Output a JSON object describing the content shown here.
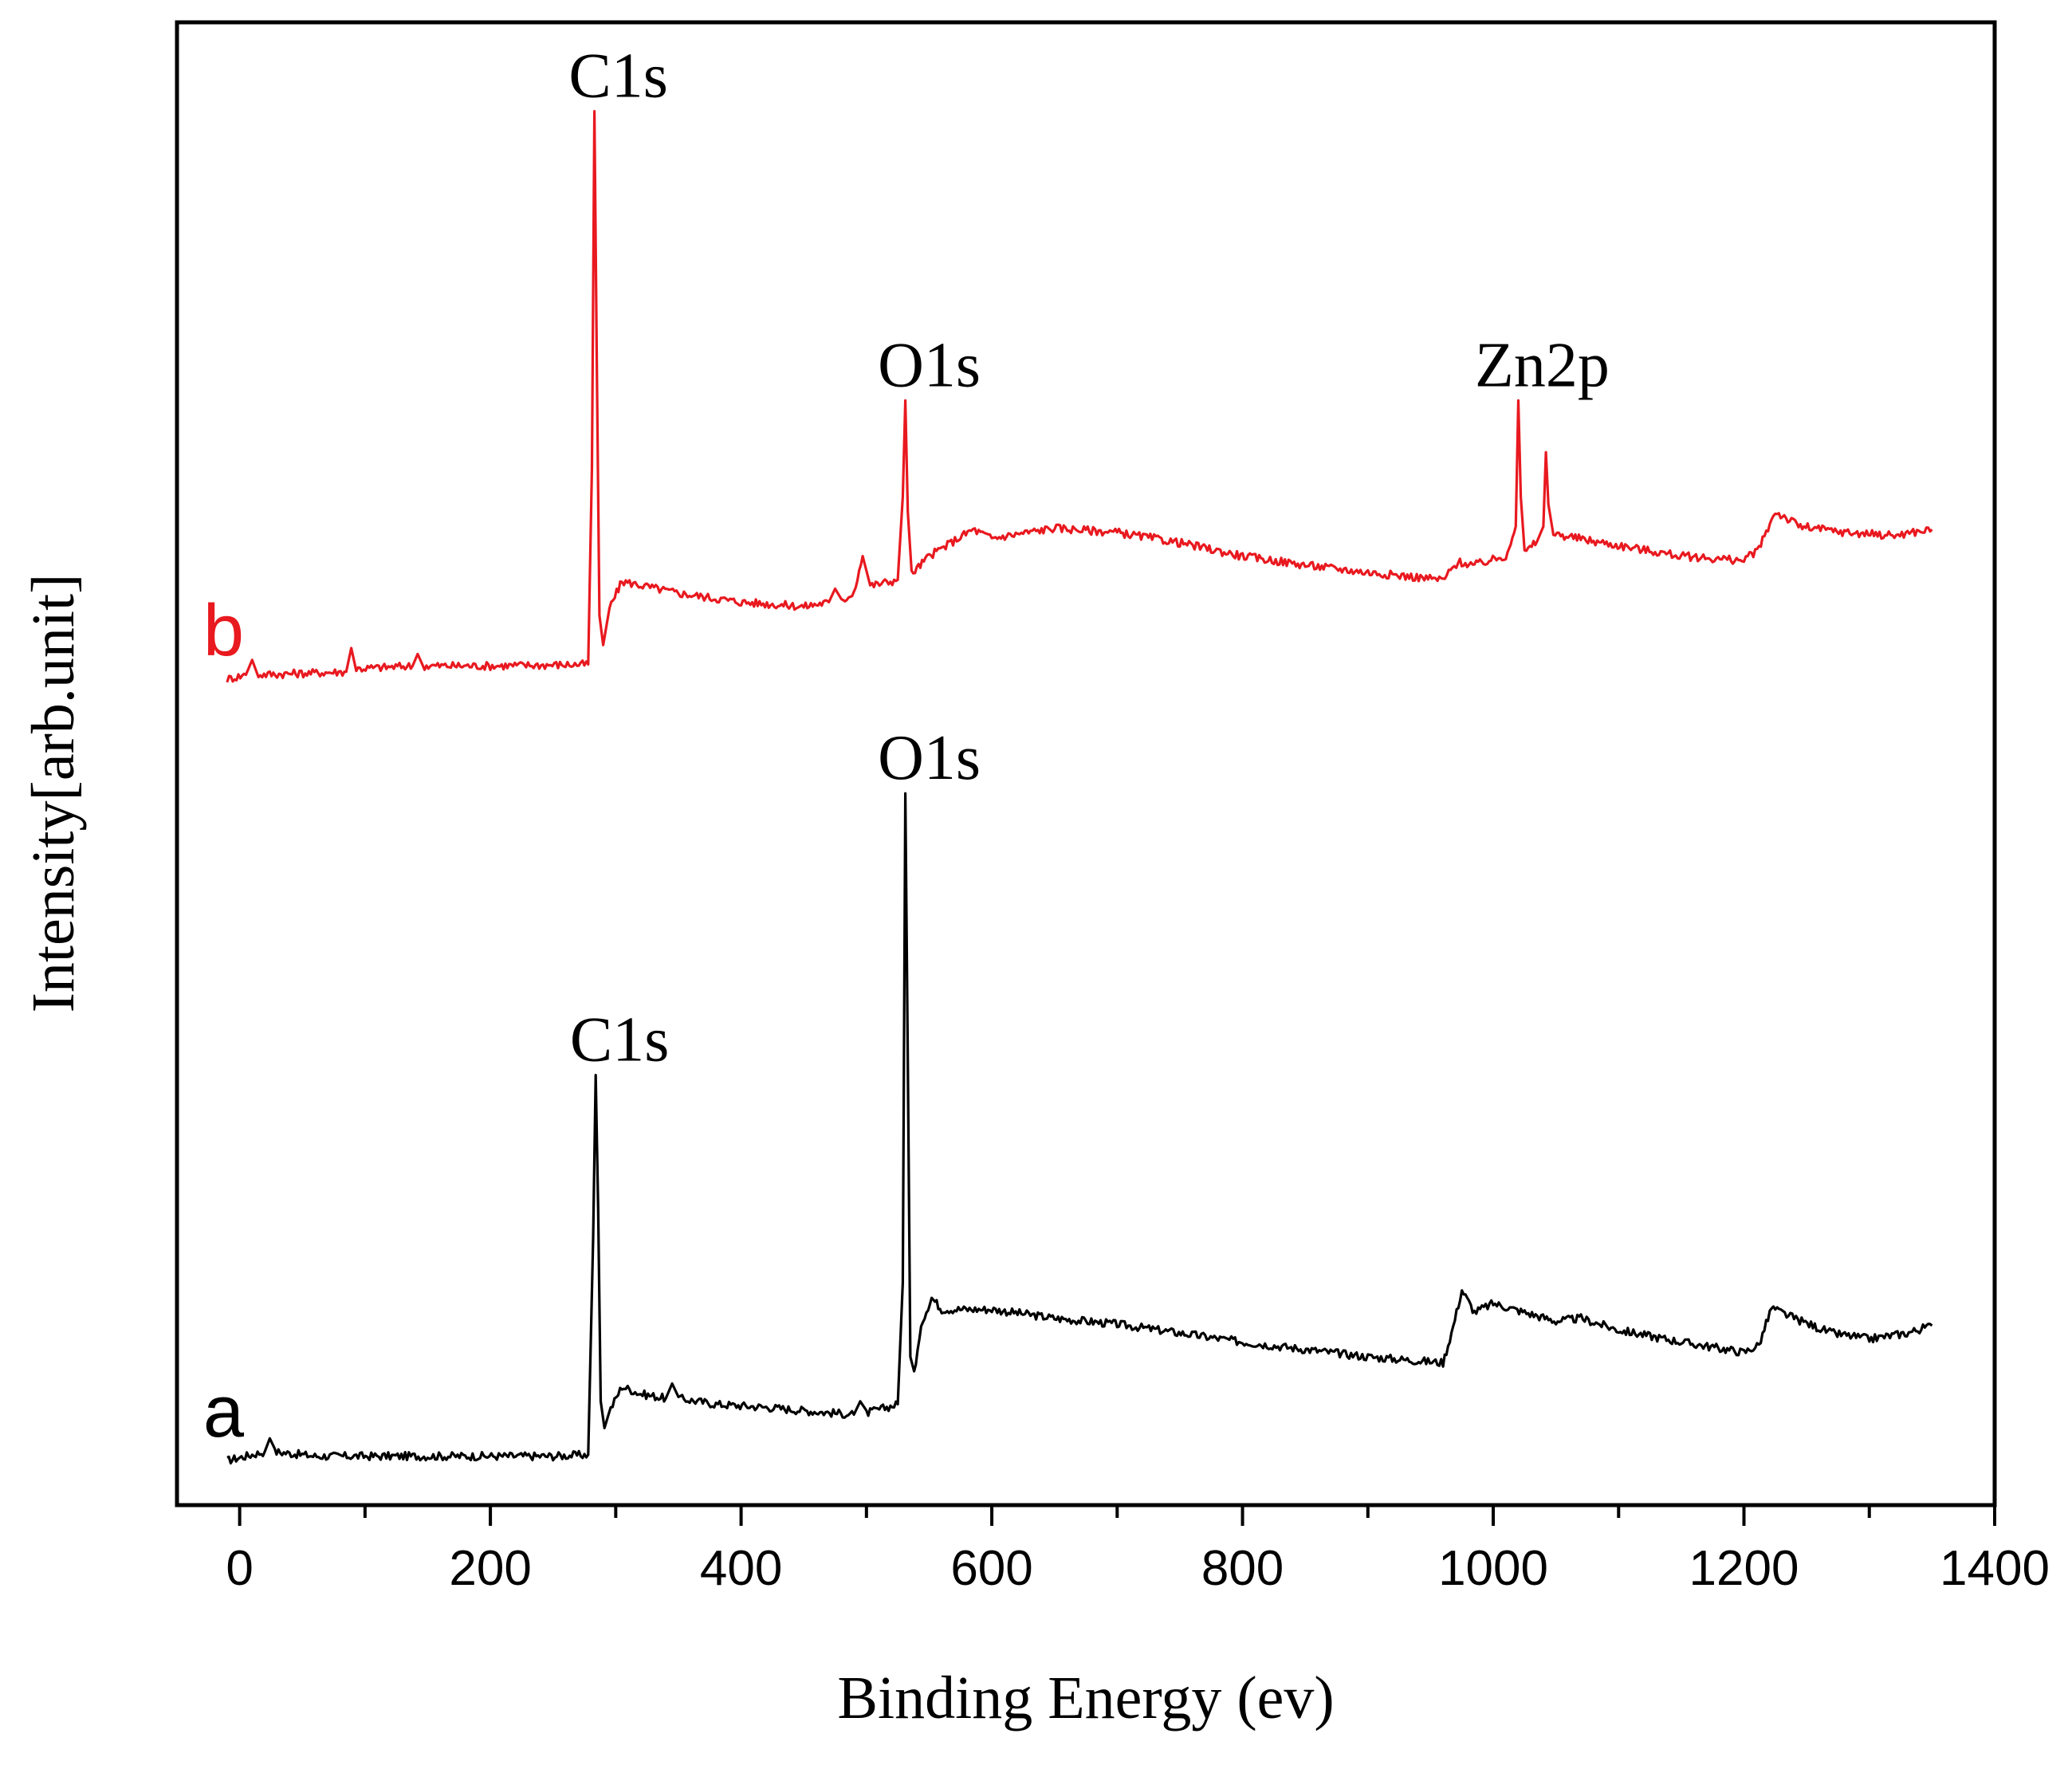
{
  "chart_data": {
    "type": "line",
    "title": "",
    "xlabel": "Binding Energy (ev)",
    "ylabel": "Intensity[arb.unit]",
    "xlim": [
      -50,
      1400
    ],
    "ylim": [
      0,
      100
    ],
    "x_ticks": [
      0,
      200,
      400,
      600,
      800,
      1000,
      1200,
      1400
    ],
    "x_tick_labels": [
      "0",
      "200",
      "400",
      "600",
      "800",
      "1000",
      "1200",
      "1400"
    ],
    "grid": false,
    "series": [
      {
        "name": "a",
        "label": "a",
        "color": "#000000",
        "points": [
          [
            -10,
            3.0
          ],
          [
            0,
            3.2
          ],
          [
            20,
            3.6
          ],
          [
            24,
            4.5
          ],
          [
            28,
            3.6
          ],
          [
            60,
            3.3
          ],
          [
            150,
            3.3
          ],
          [
            250,
            3.3
          ],
          [
            278,
            3.4
          ],
          [
            282,
            18.0
          ],
          [
            284,
            29.0
          ],
          [
            286,
            20.0
          ],
          [
            288,
            7.0
          ],
          [
            291,
            5.2
          ],
          [
            296,
            6.5
          ],
          [
            305,
            8.0
          ],
          [
            320,
            7.5
          ],
          [
            340,
            7.2
          ],
          [
            345,
            8.2
          ],
          [
            350,
            7.2
          ],
          [
            380,
            6.8
          ],
          [
            420,
            6.6
          ],
          [
            460,
            6.3
          ],
          [
            490,
            6.1
          ],
          [
            495,
            7.0
          ],
          [
            500,
            6.2
          ],
          [
            525,
            6.8
          ],
          [
            529,
            15.0
          ],
          [
            531,
            48.0
          ],
          [
            533,
            30.0
          ],
          [
            535,
            10.0
          ],
          [
            538,
            9.0
          ],
          [
            545,
            12.5
          ],
          [
            552,
            14.0
          ],
          [
            560,
            13.2
          ],
          [
            600,
            13.2
          ],
          [
            650,
            12.6
          ],
          [
            700,
            12.2
          ],
          [
            800,
            11.0
          ],
          [
            900,
            10.0
          ],
          [
            960,
            9.6
          ],
          [
            968,
            12.0
          ],
          [
            975,
            14.5
          ],
          [
            985,
            13.0
          ],
          [
            1000,
            13.6
          ],
          [
            1050,
            12.4
          ],
          [
            1070,
            12.6
          ],
          [
            1100,
            11.8
          ],
          [
            1150,
            11.0
          ],
          [
            1200,
            10.3
          ],
          [
            1212,
            10.8
          ],
          [
            1222,
            13.3
          ],
          [
            1240,
            12.6
          ],
          [
            1270,
            11.6
          ],
          [
            1300,
            11.2
          ],
          [
            1330,
            11.6
          ],
          [
            1350,
            12.1
          ]
        ]
      },
      {
        "name": "b",
        "label": "b",
        "color": "#e8191f",
        "points": [
          [
            -10,
            55.7
          ],
          [
            5,
            56.0
          ],
          [
            10,
            57.0
          ],
          [
            15,
            56.0
          ],
          [
            85,
            56.2
          ],
          [
            89,
            57.8
          ],
          [
            93,
            56.4
          ],
          [
            138,
            56.6
          ],
          [
            142,
            57.4
          ],
          [
            146,
            56.6
          ],
          [
            200,
            56.6
          ],
          [
            278,
            56.7
          ],
          [
            281,
            70.0
          ],
          [
            283,
            94.0
          ],
          [
            285,
            76.0
          ],
          [
            287,
            60.0
          ],
          [
            290,
            58.0
          ],
          [
            295,
            60.5
          ],
          [
            305,
            62.3
          ],
          [
            350,
            61.5
          ],
          [
            400,
            60.9
          ],
          [
            450,
            60.6
          ],
          [
            470,
            60.9
          ],
          [
            475,
            61.8
          ],
          [
            480,
            60.9
          ],
          [
            490,
            61.6
          ],
          [
            497,
            64.0
          ],
          [
            503,
            62.0
          ],
          [
            525,
            62.4
          ],
          [
            529,
            68.0
          ],
          [
            531,
            74.5
          ],
          [
            533,
            67.0
          ],
          [
            536,
            62.8
          ],
          [
            550,
            64.0
          ],
          [
            575,
            65.3
          ],
          [
            585,
            65.8
          ],
          [
            600,
            65.2
          ],
          [
            650,
            65.9
          ],
          [
            700,
            65.6
          ],
          [
            750,
            64.9
          ],
          [
            800,
            64.0
          ],
          [
            850,
            63.4
          ],
          [
            900,
            62.9
          ],
          [
            960,
            62.4
          ],
          [
            972,
            63.6
          ],
          [
            985,
            63.4
          ],
          [
            1010,
            64.0
          ],
          [
            1018,
            66.0
          ],
          [
            1020,
            74.5
          ],
          [
            1022,
            68.0
          ],
          [
            1025,
            64.2
          ],
          [
            1035,
            65.0
          ],
          [
            1040,
            66.0
          ],
          [
            1042,
            71.0
          ],
          [
            1044,
            67.5
          ],
          [
            1048,
            65.5
          ],
          [
            1080,
            65.0
          ],
          [
            1150,
            64.0
          ],
          [
            1200,
            63.7
          ],
          [
            1212,
            64.5
          ],
          [
            1225,
            67.0
          ],
          [
            1245,
            66.0
          ],
          [
            1280,
            65.6
          ],
          [
            1320,
            65.4
          ],
          [
            1350,
            65.8
          ]
        ]
      }
    ],
    "annotations": [
      {
        "text": "C1s",
        "x": 283,
        "y": 94.0,
        "series": "b"
      },
      {
        "text": "O1s",
        "x": 531,
        "y": 74.5,
        "series": "b"
      },
      {
        "text": "Zn2p",
        "x": 1020,
        "y": 74.5,
        "series": "b"
      },
      {
        "text": "O1s",
        "x": 531,
        "y": 48.0,
        "series": "a"
      },
      {
        "text": "C1s",
        "x": 284,
        "y": 29.0,
        "series": "a"
      }
    ]
  }
}
